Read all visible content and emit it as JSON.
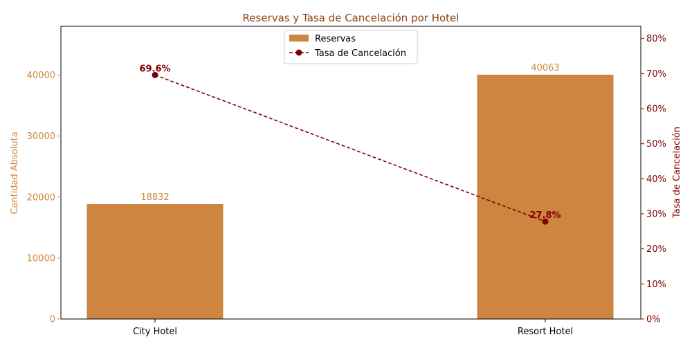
{
  "chart_data": {
    "type": "bar+line",
    "title": "Reservas y Tasa de Cancelación por Hotel",
    "categories": [
      "City Hotel",
      "Resort Hotel"
    ],
    "bar_series": {
      "name": "Reservas",
      "values": [
        18832,
        40063
      ],
      "labels": [
        "18832",
        "40063"
      ],
      "color": "#CD853F"
    },
    "line_series": {
      "name": "Tasa de Cancelación",
      "values": [
        69.6,
        27.8
      ],
      "labels": [
        "69.6%",
        "27.8%"
      ],
      "color": "#800000"
    },
    "ylabel_left": "Cantidad Absoluta",
    "ylabel_right": "Tasa de Cancelación",
    "ylim_left": [
      0,
      48000
    ],
    "ylim_right": [
      0,
      83.5
    ],
    "yticks_left": [
      0,
      10000,
      20000,
      30000,
      40000
    ],
    "yticks_left_labels": [
      "0",
      "10000",
      "20000",
      "30000",
      "40000"
    ],
    "yticks_right": [
      0,
      10,
      20,
      30,
      40,
      50,
      60,
      70,
      80
    ],
    "yticks_right_labels": [
      "0%",
      "10%",
      "20%",
      "30%",
      "40%",
      "50%",
      "60%",
      "70%",
      "80%"
    ],
    "title_color": "#8B4513",
    "legend_position": "upper-center",
    "grid": false
  }
}
